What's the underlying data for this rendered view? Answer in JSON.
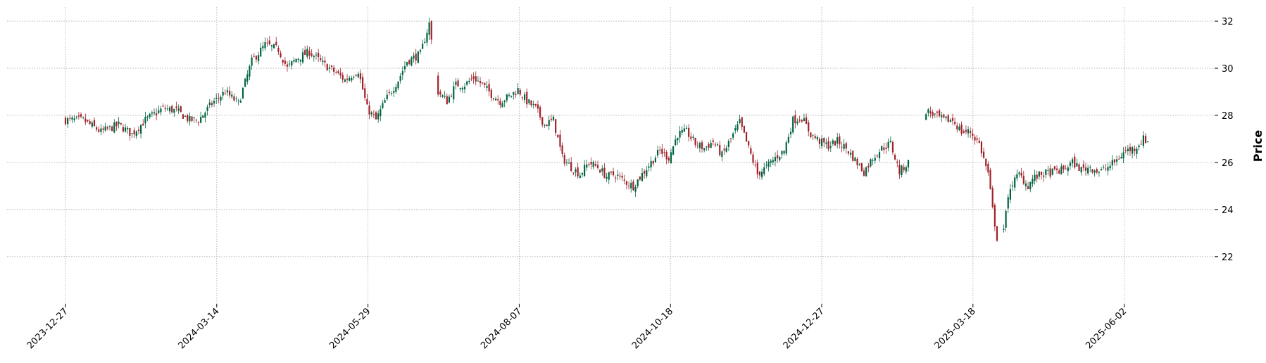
{
  "chart_data": {
    "type": "candlestick",
    "title": "",
    "xlabel": "",
    "ylabel": "Price",
    "ylim": [
      20.8,
      32.6
    ],
    "yticks": [
      22,
      24,
      26,
      28,
      30,
      32
    ],
    "grid": true,
    "xticks": [
      "2023-12-27",
      "2024-03-14",
      "2024-05-29",
      "2024-08-07",
      "2024-10-18",
      "2024-12-27",
      "2025-03-18",
      "2025-06-02"
    ],
    "colors": {
      "up": "#006340",
      "down": "#a02128",
      "grid": "#b0b0b0",
      "axis": "#000000"
    },
    "close_path": [
      [
        0,
        27.8
      ],
      [
        8,
        27.8
      ],
      [
        16,
        27.3
      ],
      [
        24,
        27.6
      ],
      [
        30,
        27.2
      ],
      [
        36,
        27.8
      ],
      [
        44,
        28.3
      ],
      [
        50,
        28.2
      ],
      [
        56,
        27.8
      ],
      [
        60,
        27.8
      ],
      [
        66,
        28.5
      ],
      [
        72,
        29.0
      ],
      [
        78,
        28.5
      ],
      [
        84,
        30.3
      ],
      [
        90,
        31.0
      ],
      [
        96,
        30.8
      ],
      [
        100,
        30.0
      ],
      [
        104,
        30.4
      ],
      [
        110,
        30.7
      ],
      [
        116,
        30.2
      ],
      [
        122,
        29.8
      ],
      [
        126,
        29.5
      ],
      [
        132,
        29.9
      ],
      [
        136,
        28.3
      ],
      [
        140,
        27.8
      ],
      [
        144,
        28.6
      ],
      [
        150,
        29.5
      ],
      [
        154,
        30.3
      ],
      [
        160,
        30.6
      ],
      [
        164,
        31.9
      ],
      [
        168,
        29.0
      ],
      [
        172,
        28.6
      ],
      [
        176,
        29.3
      ],
      [
        180,
        29.3
      ],
      [
        184,
        29.6
      ],
      [
        188,
        29.3
      ],
      [
        192,
        28.9
      ],
      [
        196,
        28.6
      ],
      [
        200,
        28.8
      ],
      [
        204,
        29.1
      ],
      [
        208,
        28.6
      ],
      [
        212,
        28.3
      ],
      [
        216,
        27.6
      ],
      [
        220,
        27.8
      ],
      [
        224,
        26.2
      ],
      [
        228,
        25.8
      ],
      [
        232,
        25.5
      ],
      [
        236,
        26.0
      ],
      [
        240,
        25.8
      ],
      [
        244,
        25.4
      ],
      [
        248,
        25.5
      ],
      [
        252,
        25.2
      ],
      [
        256,
        25.0
      ],
      [
        260,
        25.5
      ],
      [
        264,
        26.0
      ],
      [
        268,
        26.5
      ],
      [
        272,
        26.2
      ],
      [
        276,
        27.2
      ],
      [
        280,
        27.3
      ],
      [
        284,
        26.8
      ],
      [
        288,
        26.6
      ],
      [
        292,
        26.9
      ],
      [
        296,
        26.3
      ],
      [
        300,
        27.0
      ],
      [
        304,
        27.7
      ],
      [
        308,
        26.6
      ],
      [
        312,
        25.5
      ],
      [
        316,
        25.8
      ],
      [
        320,
        26.2
      ],
      [
        324,
        26.5
      ],
      [
        328,
        27.8
      ],
      [
        332,
        27.9
      ],
      [
        336,
        27.2
      ],
      [
        340,
        26.9
      ],
      [
        344,
        26.7
      ],
      [
        348,
        26.9
      ],
      [
        352,
        26.6
      ],
      [
        356,
        26.1
      ],
      [
        360,
        25.6
      ],
      [
        364,
        26.2
      ],
      [
        368,
        26.6
      ],
      [
        372,
        26.8
      ],
      [
        376,
        25.6
      ],
      [
        380,
        26.0
      ],
      [
        384,
        26.5
      ],
      [
        388,
        28.2
      ],
      [
        392,
        28.0
      ],
      [
        396,
        27.8
      ],
      [
        400,
        27.8
      ],
      [
        404,
        27.3
      ],
      [
        408,
        27.3
      ],
      [
        412,
        26.8
      ],
      [
        416,
        25.5
      ],
      [
        418,
        24.0
      ],
      [
        420,
        22.8
      ],
      [
        423,
        23.2
      ],
      [
        426,
        25.0
      ],
      [
        430,
        25.5
      ],
      [
        434,
        25.0
      ],
      [
        436,
        25.3
      ],
      [
        440,
        25.5
      ],
      [
        446,
        25.6
      ],
      [
        450,
        25.7
      ],
      [
        454,
        26.0
      ],
      [
        458,
        25.7
      ],
      [
        462,
        25.8
      ],
      [
        466,
        25.6
      ],
      [
        470,
        25.8
      ],
      [
        474,
        26.1
      ],
      [
        478,
        26.5
      ],
      [
        482,
        26.6
      ],
      [
        486,
        27.0
      ],
      [
        488,
        26.9
      ]
    ],
    "gaps": [
      [
        165,
        168
      ],
      [
        380,
        388
      ],
      [
        420,
        423
      ]
    ]
  }
}
